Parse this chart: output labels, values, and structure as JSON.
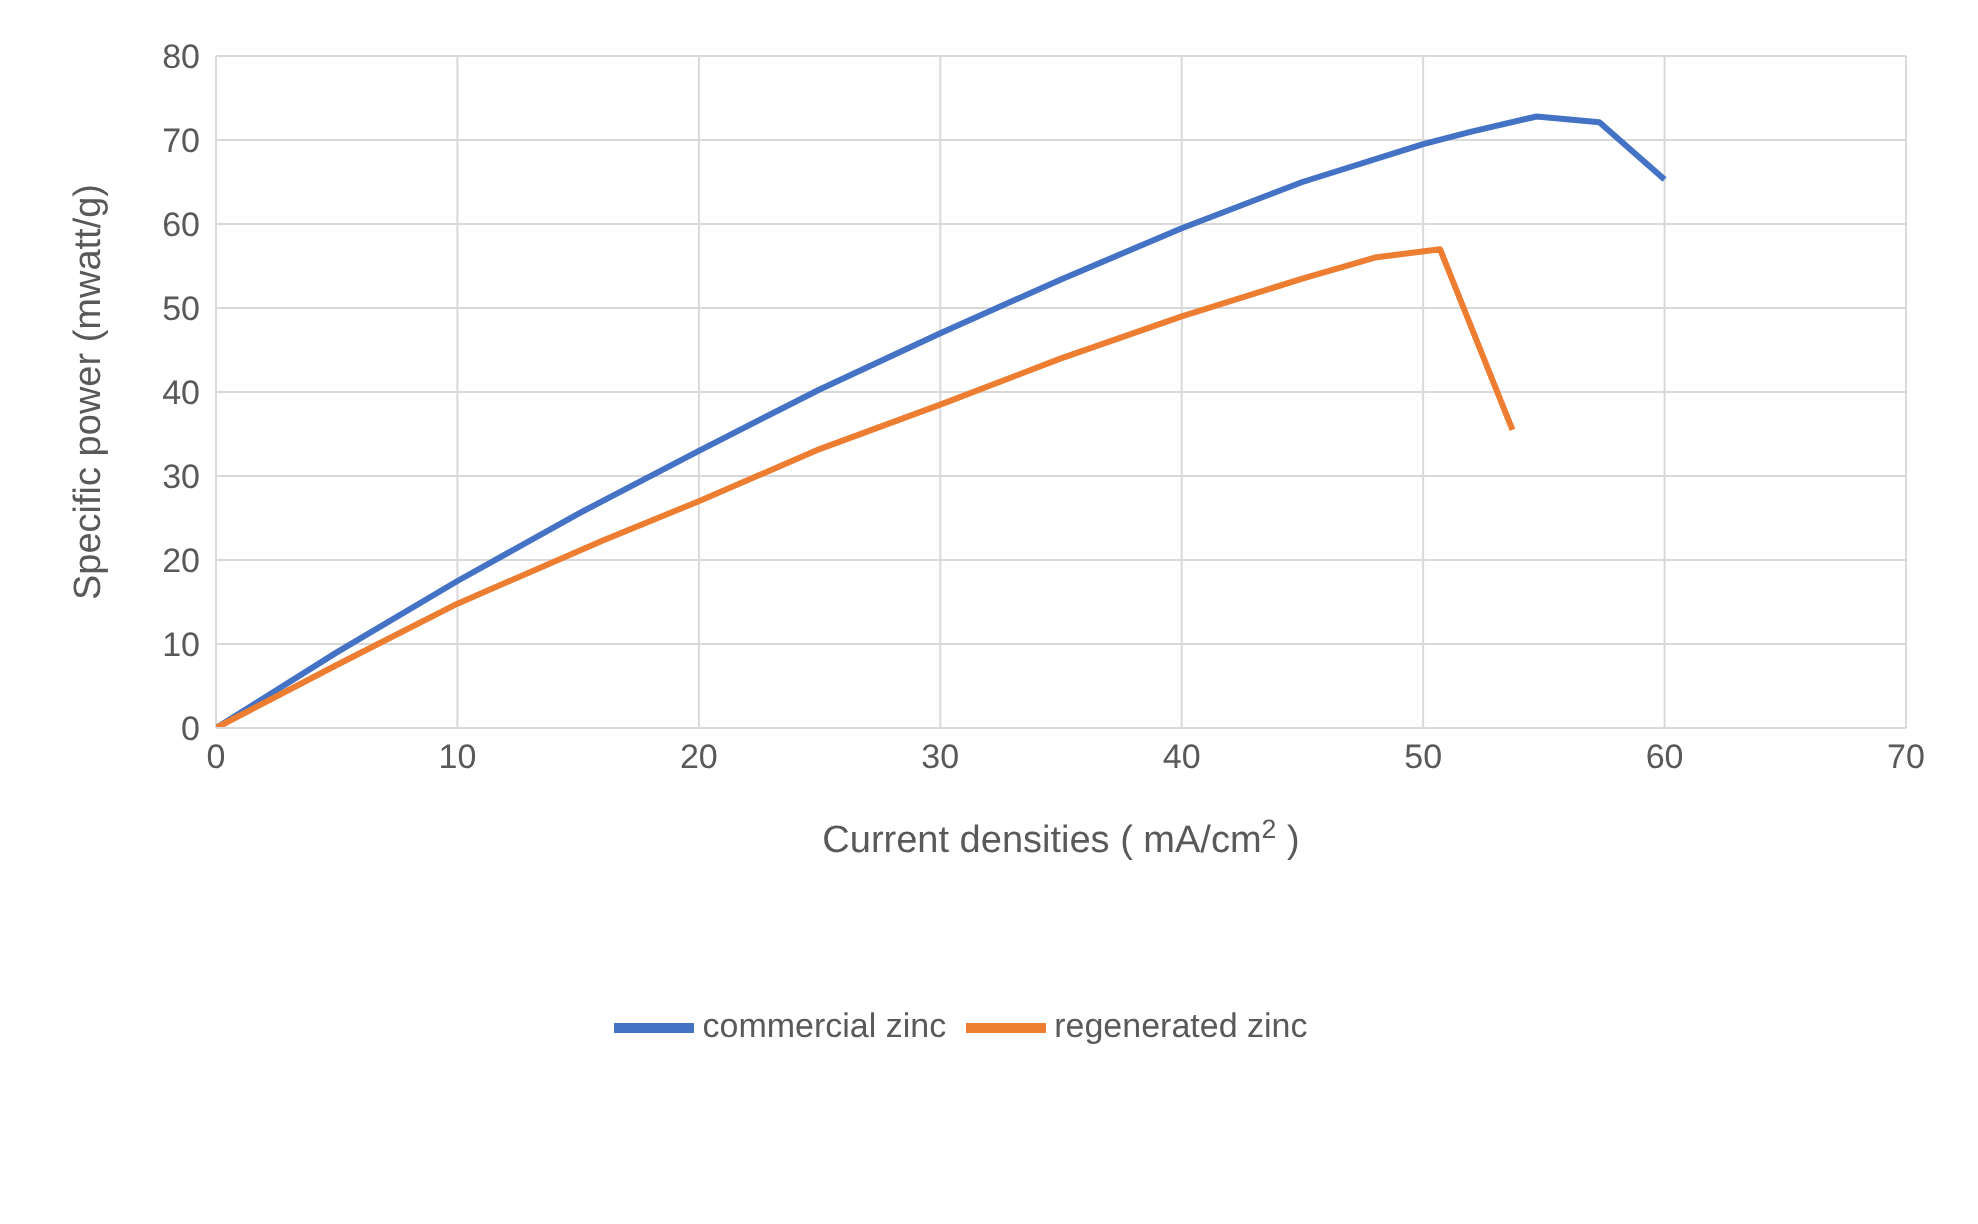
{
  "chart_data": {
    "type": "line",
    "xlabel": "Current densities ( mA/cm$^{2}$ )",
    "ylabel": "Specific power (mwatt/g)",
    "xlim": [
      0,
      70
    ],
    "xticks": [
      0,
      10,
      20,
      30,
      40,
      50,
      60,
      70
    ],
    "ylim": [
      0,
      80
    ],
    "yticks": [
      0,
      10,
      20,
      30,
      40,
      50,
      60,
      70,
      80
    ],
    "grid": true,
    "legend": "bottom",
    "marker": "none",
    "line_style": "solid",
    "series": [
      {
        "name": "commercial zinc",
        "color": "#4472c4",
        "x": [
          0,
          5,
          10,
          15,
          20,
          25,
          30,
          35,
          40,
          45,
          50,
          52,
          54.7,
          57.3,
          60
        ],
        "values": [
          0,
          9,
          17.5,
          25.5,
          33,
          40.3,
          47,
          53.4,
          59.5,
          65,
          69.5,
          71,
          72.8,
          72.1,
          65.3
        ]
      },
      {
        "name": "regenerated zinc",
        "color": "#ed7d31",
        "x": [
          0,
          5,
          10,
          16,
          20,
          25,
          30,
          35,
          40,
          45,
          48,
          50.7,
          53.7
        ],
        "values": [
          0,
          7.5,
          14.8,
          22.3,
          27,
          33.2,
          38.5,
          44,
          49,
          53.5,
          56,
          57,
          35.5
        ]
      }
    ]
  }
}
